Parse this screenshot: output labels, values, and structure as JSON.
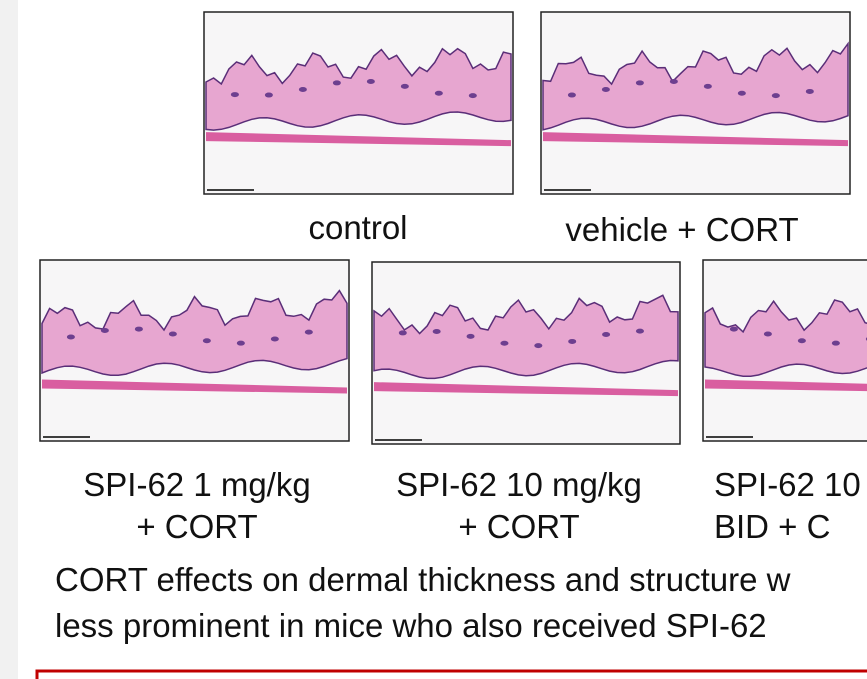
{
  "panels": [
    {
      "label": [
        "control"
      ]
    },
    {
      "label": [
        "vehicle + CORT"
      ]
    },
    {
      "label": [
        "SPI-62 1 mg/kg",
        "+ CORT"
      ]
    },
    {
      "label": [
        "SPI-62 10 mg/kg",
        "+ CORT"
      ]
    },
    {
      "label": [
        "SPI-62 10",
        "BID + C"
      ]
    }
  ],
  "caption": [
    "CORT effects on dermal thickness and structure w",
    "less prominent in mice who also received SPI-62"
  ]
}
